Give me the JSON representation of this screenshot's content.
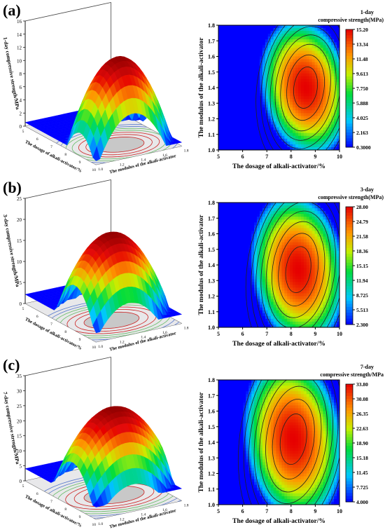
{
  "chart_data": [
    {
      "panel_label": "(a)",
      "type": "heatmap",
      "surface_type": "response-surface-3d",
      "surface_z_ticks": [
        "0",
        "2",
        "4",
        "6",
        "8",
        "10",
        "12",
        "14",
        "16"
      ],
      "surface_zlabel": "1-day compressive strength/MPa",
      "surface_xlabel": "The dosage of alkali-activator/%",
      "surface_ylabel": "The modulus of the alkali-activator",
      "contour_xlabel": "The dosage of alkali-activator/%",
      "contour_ylabel": "The modulus of the alkali-activator",
      "x_ticks": [
        "5",
        "6",
        "7",
        "8",
        "9",
        "10"
      ],
      "y_ticks": [
        "1.0",
        "1.1",
        "1.2",
        "1.3",
        "1.4",
        "1.5",
        "1.6",
        "1.7",
        "1.8"
      ],
      "xlim": [
        5,
        10
      ],
      "ylim": [
        1.0,
        1.8
      ],
      "colorbar_title_1": "1-day",
      "colorbar_title_2": "compressive strength(MPa)",
      "colorbar_ticks": [
        "15.20",
        "13.34",
        "11.48",
        "9.613",
        "7.750",
        "5.888",
        "4.025",
        "2.163",
        "0.3000"
      ],
      "zmin": 0.3,
      "zmax": 15.2,
      "optimum": {
        "x": 8.6,
        "y": 1.4,
        "z": 15.2
      },
      "ellipse_radii": {
        "rx": 1.9,
        "ry": 0.45
      },
      "tilt": 0.35,
      "colors": {
        "low": "#0000ff",
        "high": "#e60000"
      }
    },
    {
      "panel_label": "(b)",
      "type": "heatmap",
      "surface_type": "response-surface-3d",
      "surface_z_ticks": [
        "0",
        "5",
        "10",
        "15",
        "20",
        "25"
      ],
      "surface_zlabel": "3-day compressive strength/MPa",
      "surface_xlabel": "The dosage of alkali-activator/%",
      "surface_ylabel": "The modulus of the alkali-activator",
      "contour_xlabel": "The dosage of alkali-activator/%",
      "contour_ylabel": "The modulus of the alkali-activator",
      "x_ticks": [
        "5",
        "6",
        "7",
        "8",
        "9",
        "10"
      ],
      "y_ticks": [
        "1.0",
        "1.1",
        "1.2",
        "1.3",
        "1.4",
        "1.5",
        "1.6",
        "1.7",
        "1.8"
      ],
      "xlim": [
        5,
        10
      ],
      "ylim": [
        1.0,
        1.8
      ],
      "colorbar_title_1": "3-day",
      "colorbar_title_2": "compressive strength(MPa)",
      "colorbar_ticks": [
        "28.00",
        "24.79",
        "21.58",
        "18.36",
        "15.15",
        "11.94",
        "8.725",
        "5.513",
        "2.300"
      ],
      "zmin": 2.3,
      "zmax": 28.0,
      "optimum": {
        "x": 8.3,
        "y": 1.37,
        "z": 28.0
      },
      "ellipse_radii": {
        "rx": 2.0,
        "ry": 0.5
      },
      "tilt": 0.3,
      "colors": {
        "low": "#0000ff",
        "high": "#e60000"
      }
    },
    {
      "panel_label": "(c)",
      "type": "heatmap",
      "surface_type": "response-surface-3d",
      "surface_z_ticks": [
        "0",
        "5",
        "10",
        "15",
        "20",
        "25",
        "30",
        "35"
      ],
      "surface_zlabel": "7-day compressive strength/MPa",
      "surface_xlabel": "The dosage of alkali-activator/%",
      "surface_ylabel": "The modulus of the alkali-activator",
      "contour_xlabel": "The dosage of alkali-activator/%",
      "contour_ylabel": "The modulus of the alkali-activator",
      "x_ticks": [
        "5",
        "6",
        "7",
        "8",
        "9",
        "10"
      ],
      "y_ticks": [
        "1.0",
        "1.1",
        "1.2",
        "1.3",
        "1.4",
        "1.5",
        "1.6",
        "1.7",
        "1.8"
      ],
      "xlim": [
        5,
        10
      ],
      "ylim": [
        1.0,
        1.8
      ],
      "colorbar_title_1": "7-day",
      "colorbar_title_2": "compressive strength/MPa",
      "colorbar_ticks": [
        "33.80",
        "30.08",
        "26.35",
        "22.63",
        "18.90",
        "15.18",
        "11.45",
        "7.725",
        "4.000"
      ],
      "zmin": 4.0,
      "zmax": 33.8,
      "optimum": {
        "x": 8.1,
        "y": 1.42,
        "z": 33.8
      },
      "ellipse_radii": {
        "rx": 2.1,
        "ry": 0.55
      },
      "tilt": 0.3,
      "colors": {
        "low": "#0000ff",
        "high": "#e60000"
      }
    }
  ]
}
